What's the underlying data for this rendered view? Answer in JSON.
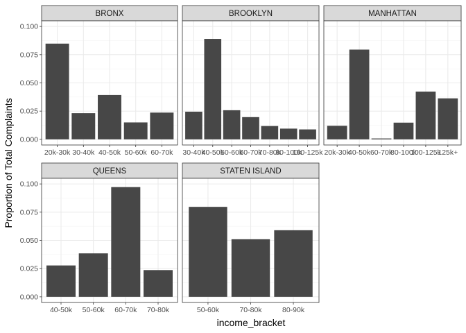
{
  "chart_data": {
    "type": "bar",
    "facet_by": "borough",
    "xlabel": "income_bracket",
    "ylabel": "Proportion of Total Complaints",
    "y_ticks": [
      "0.000",
      "0.025",
      "0.050",
      "0.075",
      "0.100"
    ],
    "grid": true,
    "theme": "bw",
    "colors": {
      "bar": "#474747",
      "strip_fill": "#d9d9d9",
      "strip_border": "#333333",
      "panel_border": "#333333",
      "grid_major": "#ebebeb",
      "grid_minor": "#f5f5f5"
    },
    "facets": [
      {
        "title": "BRONX",
        "ylim": [
          -0.005,
          0.105
        ],
        "categories": [
          "20k-30k",
          "30-40k",
          "40-50k",
          "50-60k",
          "60-70k"
        ],
        "values": [
          0.0848,
          0.0232,
          0.0393,
          0.015,
          0.0237
        ]
      },
      {
        "title": "BROOKLYN",
        "ylim": [
          -0.005,
          0.105
        ],
        "categories": [
          "30-40k",
          "40-50k",
          "50-60k",
          "60-70k",
          "70-80k",
          "80-100k",
          "100-125k"
        ],
        "values": [
          0.0245,
          0.089,
          0.0258,
          0.0197,
          0.0118,
          0.0095,
          0.0088
        ]
      },
      {
        "title": "MANHATTAN",
        "ylim": [
          -0.005,
          0.105
        ],
        "categories": [
          "20k-30k",
          "40-50k",
          "60-70k",
          "80-100k",
          "100-125k",
          "125k+"
        ],
        "values": [
          0.012,
          0.0795,
          0.0008,
          0.0148,
          0.0423,
          0.0363
        ]
      },
      {
        "title": "QUEENS",
        "ylim": [
          -0.005,
          0.105
        ],
        "categories": [
          "40-50k",
          "50-60k",
          "60-70k",
          "70-80k"
        ],
        "values": [
          0.0278,
          0.0385,
          0.0972,
          0.0237
        ]
      },
      {
        "title": "STATEN ISLAND",
        "ylim": [
          -0.005,
          0.105
        ],
        "categories": [
          "50-60k",
          "70-80k",
          "80-90k"
        ],
        "values": [
          0.0797,
          0.051,
          0.059
        ]
      }
    ]
  }
}
